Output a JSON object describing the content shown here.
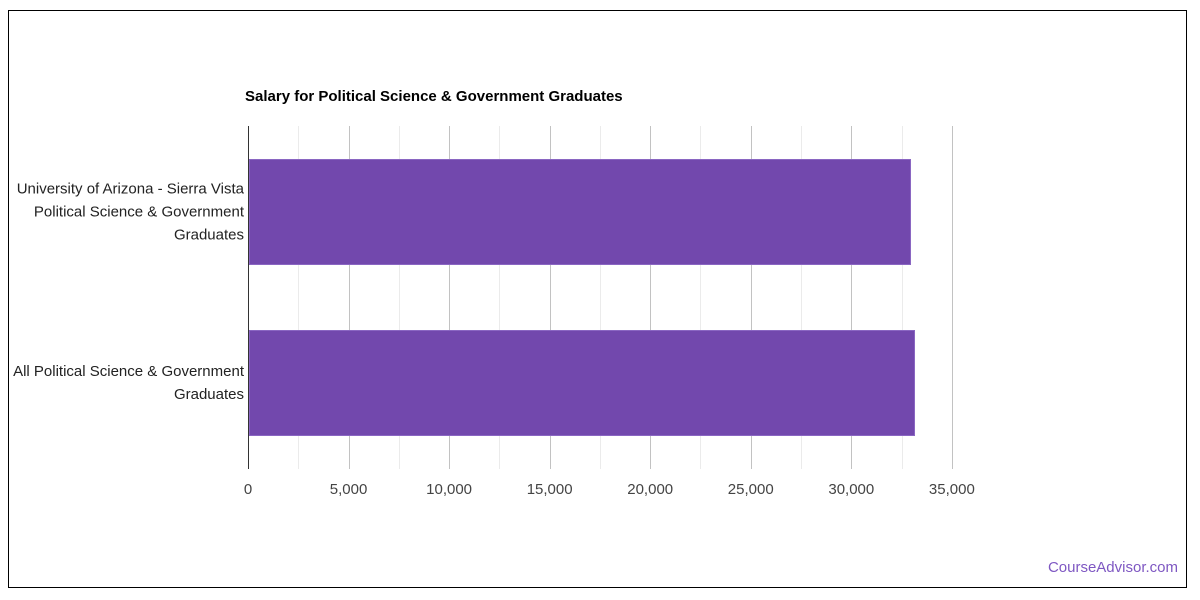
{
  "frame": {
    "border_color": "#000000",
    "background": "#ffffff"
  },
  "watermark": {
    "text": "CourseAdvisor.com",
    "color": "#7e57c2"
  },
  "chart_data": {
    "type": "bar",
    "orientation": "horizontal",
    "title": "Salary for Political Science & Government Graduates",
    "title_color": "#000000",
    "categories": [
      "University of Arizona - Sierra Vista Political Science & Government Graduates",
      "All Political Science & Government Graduates"
    ],
    "category_lines": [
      [
        "University of Arizona - Sierra Vista",
        "Political Science & Government",
        "Graduates"
      ],
      [
        "All Political Science & Government",
        "Graduates"
      ]
    ],
    "series": [
      {
        "name": "Salary",
        "values": [
          32900,
          33100
        ]
      }
    ],
    "bar_color": "#7248ad",
    "bar_edge_color": "#8a66c2",
    "xlabel": "",
    "ylabel": "",
    "xlim": [
      0,
      36200
    ],
    "x_major_tick_values": [
      0,
      5000,
      10000,
      15000,
      20000,
      25000,
      30000,
      35000
    ],
    "x_major_tick_labels": [
      "0",
      "5,000",
      "10,000",
      "15,000",
      "20,000",
      "25,000",
      "30,000",
      "35,000"
    ],
    "x_minor_step": 2500,
    "grid": "on",
    "legend": "none",
    "major_grid_color": "#c2c2c2",
    "minor_grid_color": "#ebebeb",
    "axis_line_color": "#333333",
    "tick_label_color": "#444444",
    "category_label_color": "#222222"
  }
}
